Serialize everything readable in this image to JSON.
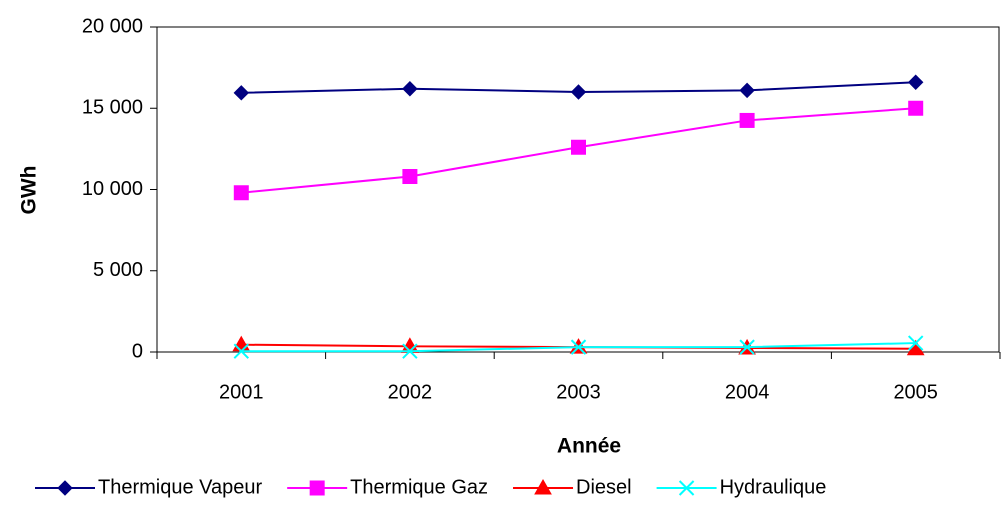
{
  "chart_data": {
    "type": "line",
    "categories": [
      "2001",
      "2002",
      "2003",
      "2004",
      "2005"
    ],
    "series": [
      {
        "name": "Thermique Vapeur",
        "color": "#000080",
        "marker": "diamond",
        "values": [
          15950,
          16200,
          16000,
          16100,
          16600
        ]
      },
      {
        "name": "Thermique Gaz",
        "color": "#ff00ff",
        "marker": "square",
        "values": [
          9800,
          10800,
          12600,
          14250,
          15000
        ]
      },
      {
        "name": "Diesel",
        "color": "#ff0000",
        "marker": "triangle",
        "values": [
          450,
          350,
          300,
          250,
          200
        ]
      },
      {
        "name": "Hydraulique",
        "color": "#00ffff",
        "marker": "x",
        "values": [
          50,
          50,
          300,
          300,
          550
        ]
      }
    ],
    "x_label": "Année",
    "y_label": "GWh",
    "ylim": [
      0,
      20000
    ],
    "yticks": [
      0,
      {
        "value": 5000,
        "label": "5 000"
      },
      {
        "value": 10000,
        "label": "10 000"
      },
      {
        "value": 15000,
        "label": "15 000"
      },
      {
        "value": 20000,
        "label": "20 000"
      }
    ],
    "legend": "bottom"
  }
}
